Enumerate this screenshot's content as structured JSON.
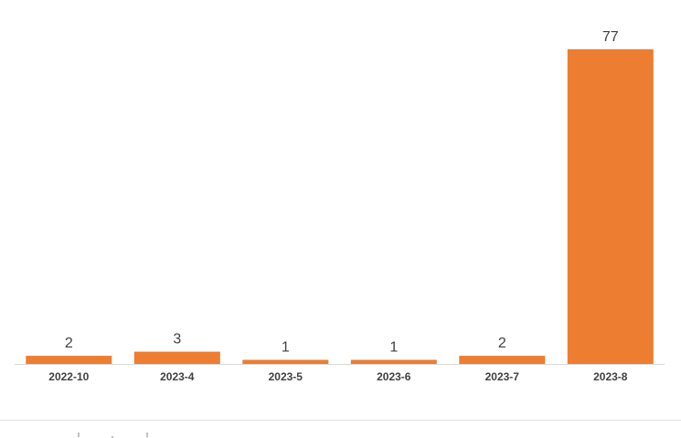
{
  "chart_data": {
    "type": "bar",
    "categories": [
      "2022-10",
      "2023-4",
      "2023-5",
      "2023-6",
      "2023-7",
      "2023-8"
    ],
    "values": [
      2,
      3,
      1,
      1,
      2,
      77
    ],
    "title": "",
    "xlabel": "",
    "ylabel": "",
    "ylim": [
      0,
      85
    ],
    "grid": false,
    "legend": "none",
    "data_labels": true,
    "colors": {
      "bar": "#ED7D31",
      "axis": "#D9D9D9",
      "label_text": "#404040"
    }
  }
}
